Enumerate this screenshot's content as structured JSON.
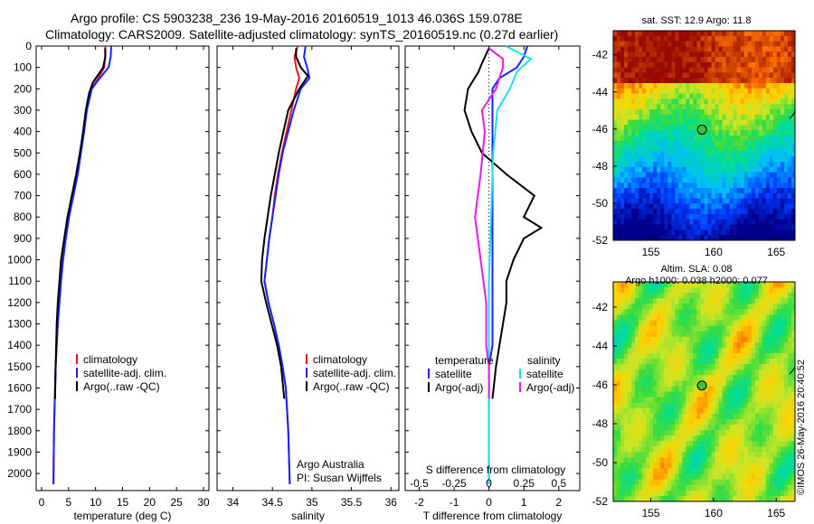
{
  "header": {
    "line1": "Argo profile: CS 5903238_236 19-May-2016 20160519_1013 46.036S 159.078E",
    "line2": "Climatology: CARS2009. Satellite-adjusted climatology: synTS_20160519.nc (0.27d earlier)"
  },
  "stamp": "©IMOS 26-May-2016 20:40:52",
  "colors": {
    "climatology": "#e8141c",
    "satellite": "#1424ff",
    "argo": "#000000",
    "sat_cyan": "#20e0e8",
    "argo_magenta": "#e81ce0"
  },
  "chart_data": [
    {
      "type": "line",
      "panel": "temperature",
      "xlabel": "temperature (deg C)",
      "xlim": [
        -1,
        31
      ],
      "xticks": [
        0,
        5,
        10,
        15,
        20,
        25,
        30
      ],
      "ylim": [
        2080,
        0
      ],
      "yticks": [
        0,
        100,
        200,
        300,
        400,
        500,
        600,
        700,
        800,
        900,
        1000,
        1100,
        1200,
        1300,
        1400,
        1500,
        1600,
        1700,
        1800,
        1900,
        2000
      ],
      "legend": [
        "climatology",
        "satellite-adj. clim.",
        "Argo(..raw -QC)"
      ],
      "series": [
        {
          "name": "climatology",
          "color": "#e8141c",
          "x": [
            11.8,
            11.8,
            11.6,
            10.5,
            9.2,
            8.3,
            7.8,
            7.2,
            6.6,
            5.8,
            5.0,
            4.4,
            3.9,
            3.6,
            3.3,
            3.0,
            2.8,
            2.6,
            2.5,
            2.3,
            2.2
          ],
          "y": [
            0,
            50,
            100,
            150,
            200,
            300,
            400,
            500,
            600,
            700,
            800,
            900,
            1000,
            1100,
            1200,
            1300,
            1400,
            1500,
            1600,
            1800,
            2050
          ]
        },
        {
          "name": "satellite-adj. clim.",
          "color": "#1424ff",
          "x": [
            12.9,
            12.8,
            12.4,
            10.8,
            9.3,
            8.4,
            7.9,
            7.3,
            6.7,
            5.9,
            5.1,
            4.5,
            4.0,
            3.6,
            3.3,
            3.0,
            2.8,
            2.6,
            2.5,
            2.3,
            2.2
          ],
          "y": [
            0,
            50,
            100,
            150,
            200,
            300,
            400,
            500,
            600,
            700,
            800,
            900,
            1000,
            1100,
            1200,
            1300,
            1400,
            1500,
            1600,
            1800,
            2050
          ]
        },
        {
          "name": "Argo(..raw -QC)",
          "color": "#000000",
          "x": [
            11.8,
            11.8,
            11.4,
            9.5,
            8.8,
            8.2,
            7.7,
            7.1,
            6.4,
            5.6,
            4.8,
            4.2,
            3.6,
            3.3,
            3.0,
            2.8,
            2.7,
            2.6,
            2.5
          ],
          "y": [
            10,
            50,
            100,
            170,
            220,
            300,
            400,
            500,
            600,
            700,
            800,
            900,
            1000,
            1100,
            1200,
            1300,
            1400,
            1500,
            1650
          ]
        }
      ]
    },
    {
      "type": "line",
      "panel": "salinity",
      "xlabel": "salinity",
      "xlim": [
        33.8,
        36.1
      ],
      "xticks": [
        34,
        34.5,
        35,
        35.5,
        36
      ],
      "ylim": [
        2080,
        0
      ],
      "legend": [
        "climatology",
        "satellite-adj. clim.",
        "Argo(..raw -QC)"
      ],
      "annotation": [
        "Argo Australia",
        "PI: Susan Wijffels"
      ],
      "series": [
        {
          "name": "climatology",
          "color": "#e8141c",
          "x": [
            34.82,
            34.78,
            34.8,
            34.84,
            34.8,
            34.74,
            34.68,
            34.62,
            34.57,
            34.53,
            34.5,
            34.46,
            34.43,
            34.4,
            34.45,
            34.52,
            34.58,
            34.63,
            34.67,
            34.7,
            34.72
          ],
          "y": [
            0,
            50,
            100,
            150,
            200,
            300,
            400,
            500,
            600,
            700,
            800,
            900,
            1000,
            1100,
            1200,
            1300,
            1400,
            1500,
            1600,
            1800,
            2050
          ]
        },
        {
          "name": "satellite-adj. clim.",
          "color": "#1424ff",
          "x": [
            34.92,
            34.9,
            34.94,
            34.97,
            34.86,
            34.77,
            34.7,
            34.63,
            34.58,
            34.54,
            34.5,
            34.46,
            34.43,
            34.4,
            34.45,
            34.52,
            34.58,
            34.63,
            34.67,
            34.7,
            34.72
          ],
          "y": [
            0,
            50,
            100,
            150,
            200,
            300,
            400,
            500,
            600,
            700,
            800,
            900,
            1000,
            1100,
            1200,
            1300,
            1400,
            1500,
            1600,
            1800,
            2050
          ]
        },
        {
          "name": "Argo(..raw -QC)",
          "color": "#000000",
          "x": [
            34.8,
            34.8,
            34.86,
            34.95,
            34.84,
            34.7,
            34.64,
            34.58,
            34.53,
            34.48,
            34.44,
            34.4,
            34.37,
            34.36,
            34.42,
            34.49,
            34.56,
            34.61,
            34.65
          ],
          "y": [
            10,
            50,
            100,
            140,
            200,
            300,
            400,
            500,
            600,
            700,
            800,
            900,
            1000,
            1100,
            1200,
            1300,
            1400,
            1500,
            1650
          ]
        }
      ]
    },
    {
      "type": "line",
      "panel": "differences",
      "xlabel": "T difference from climatology",
      "xlabel_top": "S difference from climatology",
      "xlim": [
        -2.4,
        2.6
      ],
      "xticks": [
        -2,
        -1,
        0,
        1,
        2
      ],
      "sticks": [
        -0.5,
        -0.25,
        0,
        0.25,
        0.5
      ],
      "ylim": [
        2080,
        0
      ],
      "legend": {
        "temperature": [
          "satellite",
          "Argo(-adj)"
        ],
        "salinity": [
          "satellite",
          "Argo(-adj)"
        ]
      },
      "series": [
        {
          "name": "satellite",
          "group": "temperature",
          "color": "#1424ff",
          "x": [
            1.1,
            1.0,
            0.8,
            0.3,
            0.1,
            0.1,
            0.1,
            0.1,
            0.1,
            0.1,
            0.1,
            0.1,
            0.0,
            0.0,
            0.0,
            0.0,
            0.0
          ],
          "y": [
            0,
            50,
            100,
            150,
            200,
            300,
            400,
            600,
            800,
            1000,
            1200,
            1400,
            1500,
            1600,
            1800,
            1900,
            2050
          ]
        },
        {
          "name": "Argo(-adj)",
          "group": "temperature",
          "color": "#000000",
          "x": [
            0.0,
            -0.2,
            -0.3,
            -0.6,
            -0.7,
            -0.5,
            -0.2,
            0.5,
            1.3,
            1.0,
            1.5,
            1.0,
            0.7,
            0.5,
            0.5,
            0.4,
            0.3,
            0.2,
            0.1
          ],
          "y": [
            10,
            80,
            120,
            200,
            300,
            400,
            500,
            600,
            700,
            800,
            850,
            900,
            1000,
            1100,
            1200,
            1300,
            1400,
            1500,
            1650
          ]
        },
        {
          "name": "satellite",
          "group": "salinity",
          "color": "#20e0e8",
          "x": [
            0.12,
            0.3,
            0.2,
            0.15,
            0.06,
            0.03,
            0.02,
            0.01,
            0.0,
            0.0,
            0.0,
            0.0,
            0.0,
            0.0
          ],
          "y": [
            0,
            60,
            120,
            200,
            300,
            500,
            700,
            900,
            1100,
            1300,
            1500,
            1700,
            1900,
            2050
          ]
        },
        {
          "name": "Argo(-adj)",
          "group": "salinity",
          "color": "#e81ce0",
          "x": [
            0.0,
            0.1,
            0.1,
            0.05,
            -0.05,
            -0.03,
            -0.06,
            -0.1,
            -0.06,
            -0.02,
            -0.02,
            0.0,
            0.0,
            0.0
          ],
          "y": [
            10,
            60,
            100,
            200,
            300,
            400,
            600,
            800,
            1000,
            1200,
            1400,
            1500,
            1600,
            1650
          ]
        }
      ]
    },
    {
      "type": "heatmap",
      "panel": "sst_map",
      "title": "sat. SST: 12.9  Argo: 11.8",
      "xticks": [
        155,
        160,
        165
      ],
      "yticks": [
        -42,
        -44,
        -46,
        -48,
        -50,
        -52
      ],
      "xlim": [
        152,
        166.5
      ],
      "ylim": [
        -52,
        -40.7
      ],
      "marker": {
        "lon": 159.078,
        "lat": -46.036
      }
    },
    {
      "type": "heatmap",
      "panel": "sla_map",
      "title": "Altim. SLA: 0.08",
      "subtitle": "Argo h1000: 0.038 h2000: 0.077",
      "xticks": [
        155,
        160,
        165
      ],
      "yticks": [
        -42,
        -44,
        -46,
        -48,
        -50,
        -52
      ],
      "xlim": [
        152,
        166.5
      ],
      "ylim": [
        -52,
        -40.7
      ],
      "marker": {
        "lon": 159.078,
        "lat": -46.036
      }
    }
  ]
}
